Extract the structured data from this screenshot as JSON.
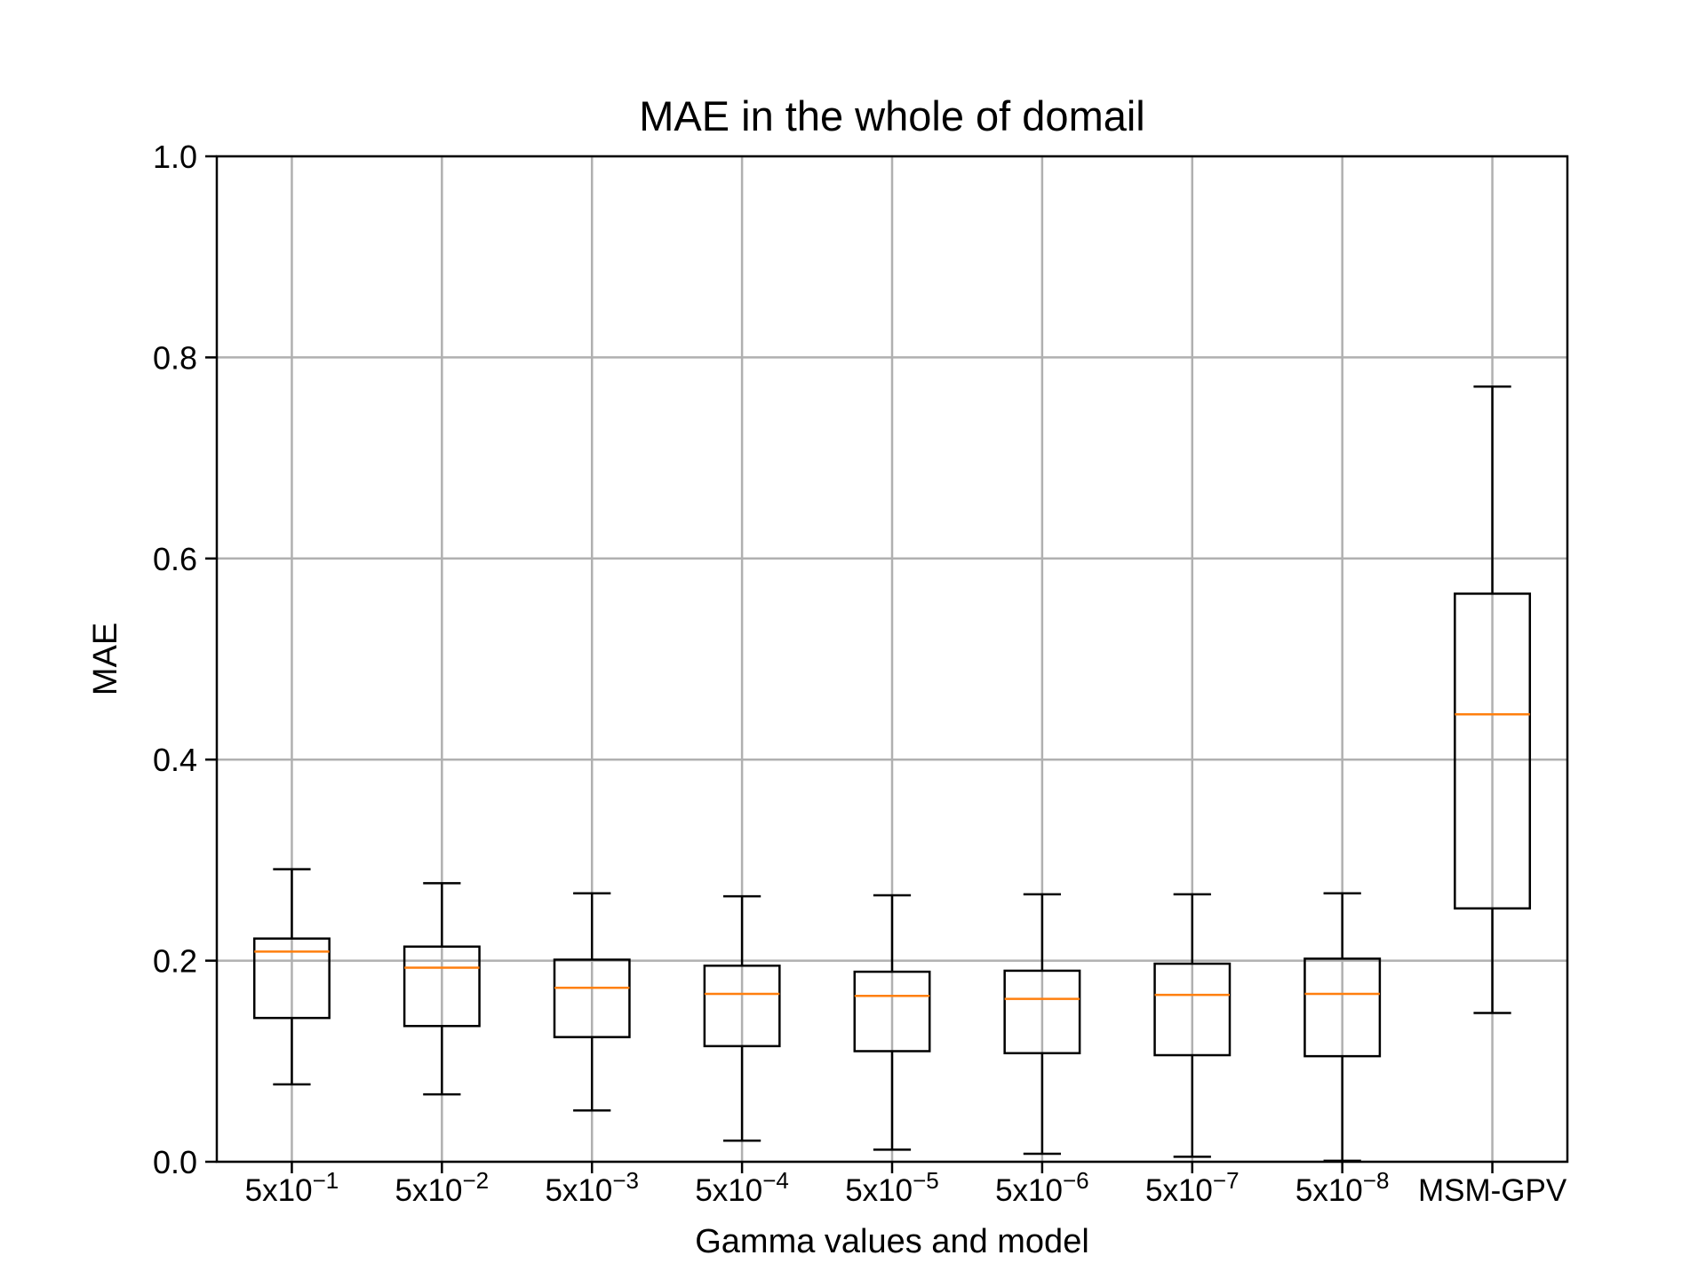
{
  "chart_data": {
    "type": "box",
    "title": "MAE in the whole of domail",
    "xlabel": "Gamma values and model",
    "ylabel": "MAE",
    "ylim": [
      0,
      1
    ],
    "yticks": [
      "0.0",
      "0.2",
      "0.4",
      "0.6",
      "0.8",
      "1.0"
    ],
    "grid": true,
    "categories": [
      {
        "base": "5x10",
        "exp": "−1"
      },
      {
        "base": "5x10",
        "exp": "−2"
      },
      {
        "base": "5x10",
        "exp": "−3"
      },
      {
        "base": "5x10",
        "exp": "−4"
      },
      {
        "base": "5x10",
        "exp": "−5"
      },
      {
        "base": "5x10",
        "exp": "−6"
      },
      {
        "base": "5x10",
        "exp": "−7"
      },
      {
        "base": "5x10",
        "exp": "−8"
      },
      {
        "base": "MSM-GPV",
        "exp": ""
      }
    ],
    "boxes": [
      {
        "whisker_low": 0.077,
        "q1": 0.143,
        "median": 0.209,
        "q3": 0.222,
        "whisker_high": 0.291
      },
      {
        "whisker_low": 0.067,
        "q1": 0.135,
        "median": 0.193,
        "q3": 0.214,
        "whisker_high": 0.277
      },
      {
        "whisker_low": 0.051,
        "q1": 0.124,
        "median": 0.173,
        "q3": 0.201,
        "whisker_high": 0.267
      },
      {
        "whisker_low": 0.021,
        "q1": 0.115,
        "median": 0.167,
        "q3": 0.195,
        "whisker_high": 0.264
      },
      {
        "whisker_low": 0.012,
        "q1": 0.11,
        "median": 0.165,
        "q3": 0.189,
        "whisker_high": 0.265
      },
      {
        "whisker_low": 0.008,
        "q1": 0.108,
        "median": 0.162,
        "q3": 0.19,
        "whisker_high": 0.266
      },
      {
        "whisker_low": 0.005,
        "q1": 0.106,
        "median": 0.166,
        "q3": 0.197,
        "whisker_high": 0.266
      },
      {
        "whisker_low": 0.001,
        "q1": 0.105,
        "median": 0.167,
        "q3": 0.202,
        "whisker_high": 0.267
      },
      {
        "whisker_low": 0.148,
        "q1": 0.252,
        "median": 0.445,
        "q3": 0.565,
        "whisker_high": 0.771
      }
    ],
    "colors": {
      "box": "#000000",
      "median": "#ff7f0e",
      "grid": "#b0b0b0"
    }
  }
}
